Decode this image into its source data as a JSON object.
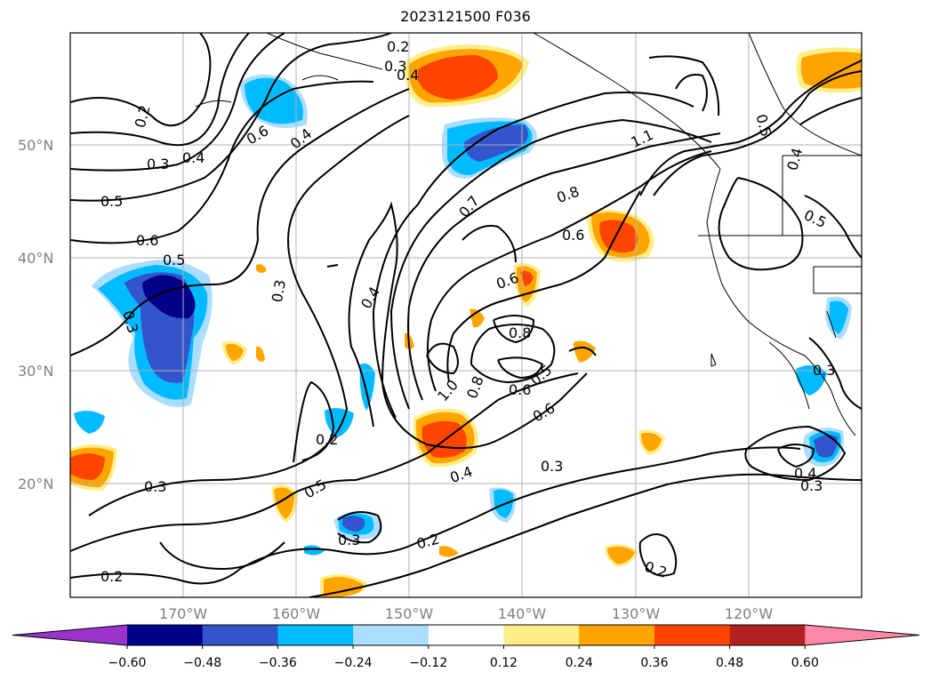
{
  "title": "2023121500 F036",
  "lat_labels": [
    "50°N",
    "40°N",
    "30°N",
    "20°N"
  ],
  "lon_labels": [
    "170°W",
    "160°W",
    "150°W",
    "140°W",
    "130°W",
    "120°W"
  ],
  "colorbar": {
    "ticks": [
      "−0.60",
      "−0.48",
      "−0.36",
      "−0.24",
      "−0.12",
      "0.12",
      "0.24",
      "0.36",
      "0.48",
      "0.60"
    ],
    "colors": [
      "#9933cc",
      "#000088",
      "#3355cc",
      "#00bbff",
      "#aaddff",
      "#ffffff",
      "#ffee88",
      "#ffa500",
      "#ff4400",
      "#b22222",
      "#ff88aa"
    ]
  },
  "contour_labels": [
    "0.2",
    "0.3",
    "0.4",
    "0.2",
    "0.3",
    "0.4",
    "0.5",
    "0.6",
    "0.5",
    "0.3",
    "0.6",
    "0.4",
    "0.3",
    "0.4",
    "0.6",
    "0.7",
    "0.8",
    "0.6",
    "0.8",
    "1.0",
    "0.8",
    "0.6",
    "0.5",
    "0.6",
    "0.2",
    "0.5",
    "0.3",
    "0.4",
    "0.3",
    "0.2",
    "0.2",
    "0.3",
    "0.5",
    "0.4",
    "0.5",
    "0.3",
    "0.4",
    "0.3",
    "0.2",
    "1.1"
  ]
}
